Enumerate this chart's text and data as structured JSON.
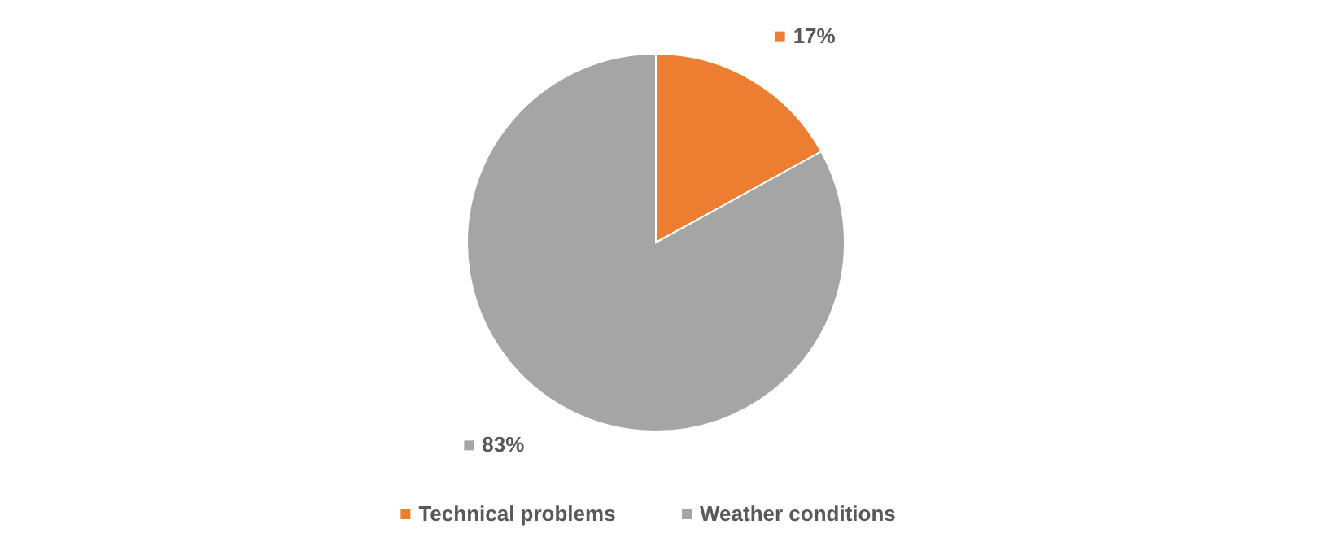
{
  "chart_data": {
    "type": "pie",
    "categories": [
      "Technical problems",
      "Weather conditions"
    ],
    "values": [
      17,
      83
    ],
    "value_labels": [
      "17%",
      "83%"
    ],
    "colors": [
      "#ed7d31",
      "#a5a5a5"
    ],
    "legend": "bottom"
  }
}
